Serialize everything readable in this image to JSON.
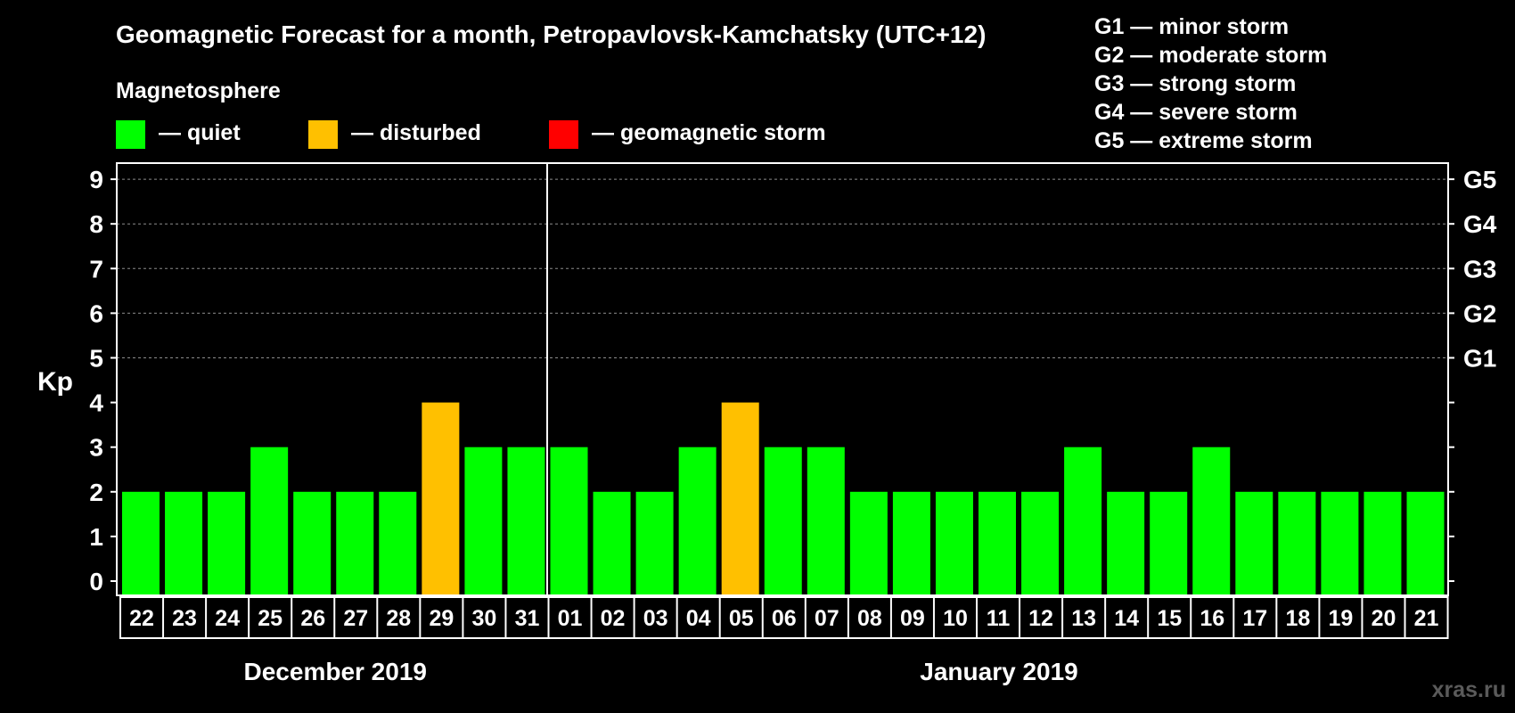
{
  "chart_data": {
    "type": "bar",
    "title": "Geomagnetic Forecast for a month, Petropavlovsk-Kamchatsky (UTC+12)",
    "legend_title": "Magnetosphere",
    "legend": [
      {
        "label": "— quiet",
        "color": "#00ff00"
      },
      {
        "label": "— disturbed",
        "color": "#ffc000"
      },
      {
        "label": "— geomagnetic storm",
        "color": "#ff0000"
      }
    ],
    "storm_scale": [
      "G1 — minor storm",
      "G2 — moderate storm",
      "G3 — strong storm",
      "G4 — severe storm",
      "G5 — extreme storm"
    ],
    "ylabel": "Kp",
    "ylim": [
      0,
      9
    ],
    "y_ticks": [
      "0",
      "1",
      "2",
      "3",
      "4",
      "5",
      "6",
      "7",
      "8",
      "9"
    ],
    "right_axis_labels": [
      {
        "kp": 5,
        "label": "G1"
      },
      {
        "kp": 6,
        "label": "G2"
      },
      {
        "kp": 7,
        "label": "G3"
      },
      {
        "kp": 8,
        "label": "G4"
      },
      {
        "kp": 9,
        "label": "G5"
      }
    ],
    "categories": [
      "22",
      "23",
      "24",
      "25",
      "26",
      "27",
      "28",
      "29",
      "30",
      "31",
      "01",
      "02",
      "03",
      "04",
      "05",
      "06",
      "07",
      "08",
      "09",
      "10",
      "11",
      "12",
      "13",
      "14",
      "15",
      "16",
      "17",
      "18",
      "19",
      "20",
      "21"
    ],
    "values": [
      2,
      2,
      2,
      3,
      2,
      2,
      2,
      4,
      3,
      3,
      3,
      2,
      2,
      3,
      4,
      3,
      3,
      2,
      2,
      2,
      2,
      2,
      3,
      2,
      2,
      3,
      2,
      2,
      2,
      2,
      2
    ],
    "status": [
      "quiet",
      "quiet",
      "quiet",
      "quiet",
      "quiet",
      "quiet",
      "quiet",
      "disturbed",
      "quiet",
      "quiet",
      "quiet",
      "quiet",
      "quiet",
      "quiet",
      "disturbed",
      "quiet",
      "quiet",
      "quiet",
      "quiet",
      "quiet",
      "quiet",
      "quiet",
      "quiet",
      "quiet",
      "quiet",
      "quiet",
      "quiet",
      "quiet",
      "quiet",
      "quiet",
      "quiet"
    ],
    "colors": {
      "quiet": "#00ff00",
      "disturbed": "#ffc000",
      "storm": "#ff0000"
    },
    "month_groups": [
      {
        "label": "December 2019",
        "count": 10
      },
      {
        "label": "January 2019",
        "count": 21
      }
    ],
    "grid": true
  },
  "watermark": "xras.ru"
}
